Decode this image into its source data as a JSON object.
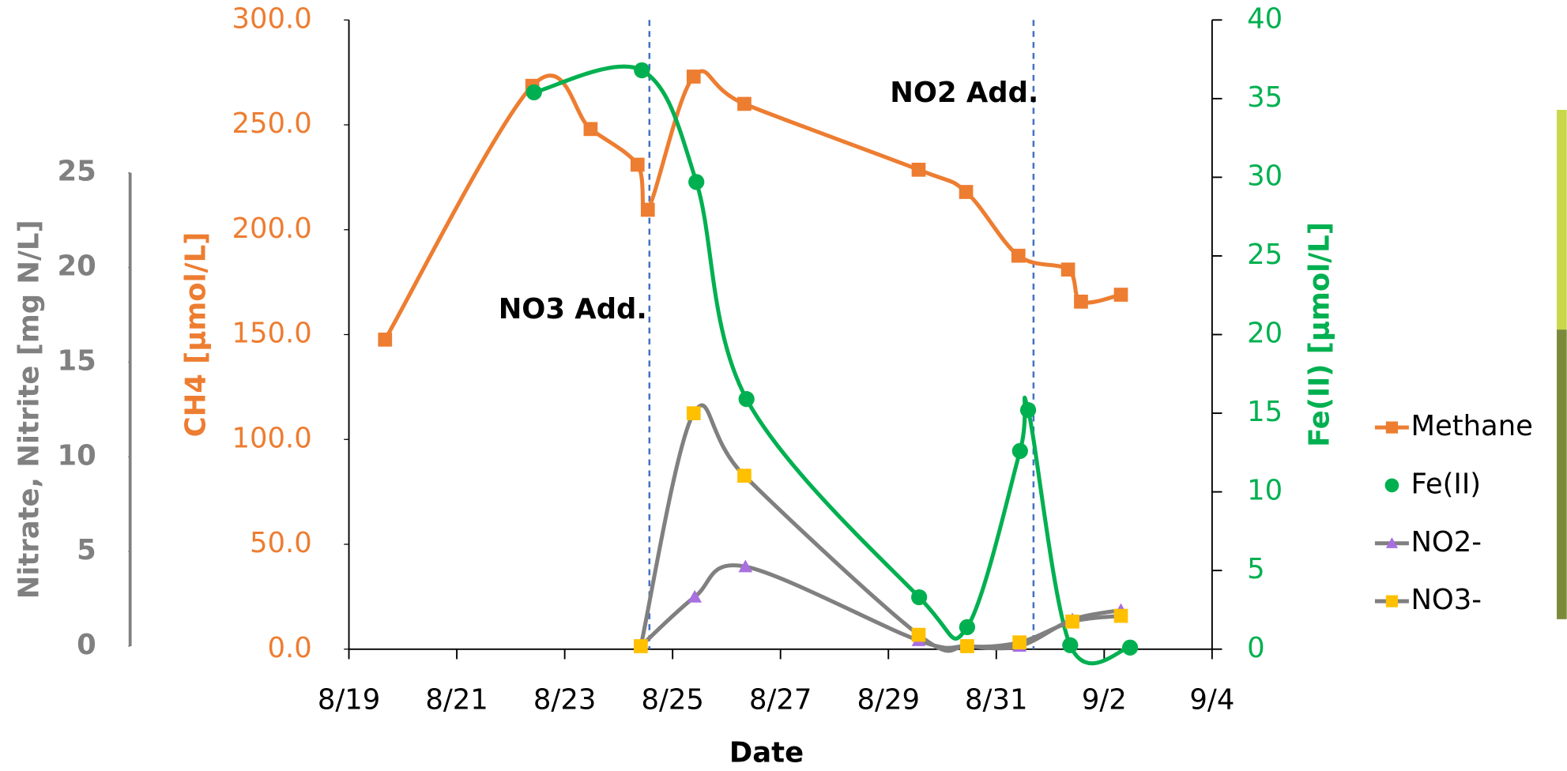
{
  "chart_data": {
    "type": "line",
    "xlabel": "Date",
    "ylabel": "CH4 [µmol/L]",
    "y2label": "Fe(II) [µmol/L]",
    "y3label": "Nitrate, Nitrite [mg N/L]",
    "xlim": [
      0,
      16
    ],
    "xticks": [
      {
        "value": 0,
        "label": "8/19"
      },
      {
        "value": 2,
        "label": "8/21"
      },
      {
        "value": 4,
        "label": "8/23"
      },
      {
        "value": 6,
        "label": "8/25"
      },
      {
        "value": 8,
        "label": "8/27"
      },
      {
        "value": 10,
        "label": "8/29"
      },
      {
        "value": 12,
        "label": "8/31"
      },
      {
        "value": 14,
        "label": "9/2"
      },
      {
        "value": 16,
        "label": "9/4"
      }
    ],
    "ylim": [
      0,
      300
    ],
    "yticks": [
      {
        "value": 0,
        "label": "0.0"
      },
      {
        "value": 50,
        "label": "50.0"
      },
      {
        "value": 100,
        "label": "100.0"
      },
      {
        "value": 150,
        "label": "150.0"
      },
      {
        "value": 200,
        "label": "200.0"
      },
      {
        "value": 250,
        "label": "250.0"
      },
      {
        "value": 300,
        "label": "300.0"
      }
    ],
    "y2lim": [
      0,
      40
    ],
    "y2ticks": [
      0,
      5,
      10,
      15,
      20,
      25,
      30,
      35,
      40
    ],
    "y3lim": [
      0,
      25
    ],
    "y3ticks": [
      0,
      5,
      10,
      15,
      20,
      25
    ],
    "grid": false,
    "legend": "right",
    "vlines": [
      5.57,
      12.69
    ],
    "annotations": [
      "NO3 Add.",
      "NO2 Add."
    ],
    "series": [
      {
        "name": "Methane",
        "color": "#ed7d31",
        "marker_color": "#ed7d31",
        "marker": "square",
        "axis": "y",
        "x": [
          0.67,
          3.4,
          4.48,
          5.35,
          5.54,
          6.39,
          7.33,
          10.56,
          11.44,
          12.41,
          13.33,
          13.57,
          14.31
        ],
        "values": [
          147.6,
          268.6,
          248,
          231,
          209.5,
          273,
          260,
          228.6,
          218,
          187.6,
          181,
          165.7,
          169
        ]
      },
      {
        "name": "Fe(II)",
        "color": "#00b050",
        "marker_color": "#00b050",
        "marker": "circle",
        "axis": "y2",
        "x": [
          3.43,
          5.43,
          6.44,
          7.37,
          10.57,
          11.46,
          12.44,
          12.59,
          13.37,
          14.48
        ],
        "values": [
          35.4,
          36.8,
          29.7,
          15.9,
          3.3,
          1.4,
          12.6,
          15.2,
          0.25,
          0.1
        ]
      },
      {
        "name": "NO2-",
        "color": "#808080",
        "marker_color": "#a86fe0",
        "marker": "triangle",
        "axis": "y3",
        "x": [
          5.41,
          6.41,
          7.35,
          10.56,
          11.46,
          12.43,
          13.41,
          14.31
        ],
        "values": [
          0,
          2.6,
          4.2,
          0.3,
          0,
          0,
          1.4,
          1.9
        ]
      },
      {
        "name": "NO3-",
        "color": "#808080",
        "marker_color": "#ffc000",
        "marker": "square",
        "axis": "y3",
        "x": [
          5.41,
          6.39,
          7.33,
          10.56,
          11.46,
          12.43,
          13.41,
          14.31
        ],
        "values": [
          0,
          12.3,
          9.0,
          0.6,
          0,
          0.2,
          1.3,
          1.6
        ]
      }
    ]
  }
}
